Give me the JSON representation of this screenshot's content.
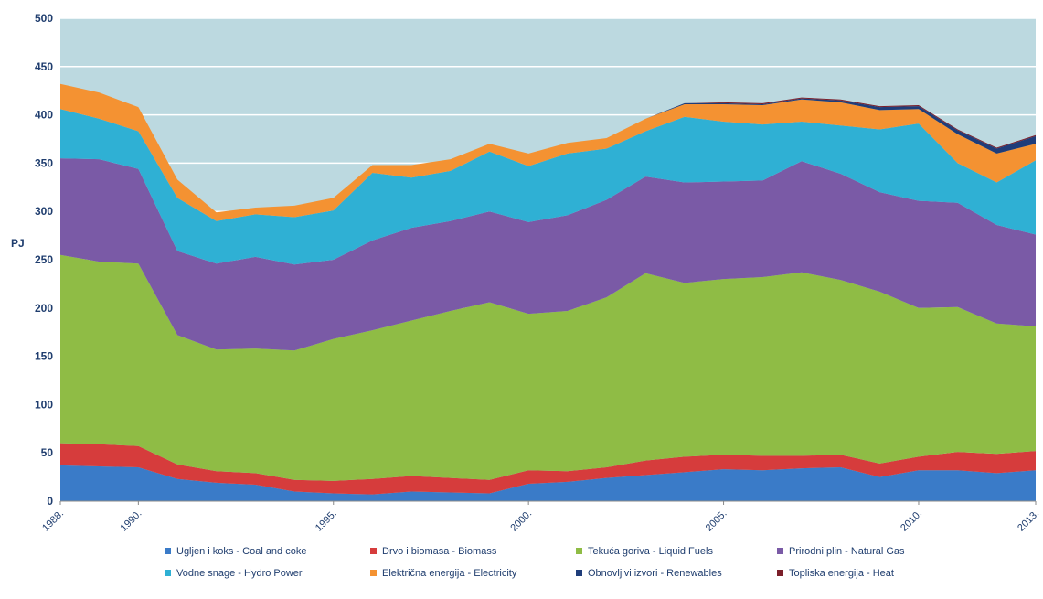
{
  "chart_data": {
    "type": "stacked_area",
    "ylabel": "PJ",
    "x": [
      1988,
      1989,
      1990,
      1991,
      1992,
      1993,
      1994,
      1995,
      1996,
      1997,
      1998,
      1999,
      2000,
      2001,
      2002,
      2003,
      2004,
      2005,
      2006,
      2007,
      2008,
      2009,
      2010,
      2011,
      2012,
      2013
    ],
    "xlim": [
      1988,
      2013
    ],
    "xticks": [
      {
        "value": 1988,
        "label": "1988."
      },
      {
        "value": 1990,
        "label": "1990."
      },
      {
        "value": 1995,
        "label": "1995."
      },
      {
        "value": 2000,
        "label": "2000."
      },
      {
        "value": 2005,
        "label": "2005."
      },
      {
        "value": 2010,
        "label": "2010."
      },
      {
        "value": 2013,
        "label": "2013."
      }
    ],
    "ylim": [
      0,
      500
    ],
    "yticks": [
      0,
      50,
      100,
      150,
      200,
      250,
      300,
      350,
      400,
      450,
      500
    ],
    "grid": true,
    "series": [
      {
        "name": "Ugljen i koks - Coal and coke",
        "color": "#3a7bc8",
        "values": [
          37,
          36,
          35,
          23,
          19,
          17,
          10,
          8,
          7,
          10,
          9,
          8,
          18,
          20,
          24,
          27,
          30,
          33,
          32,
          34,
          35,
          25,
          32,
          32,
          29,
          32
        ]
      },
      {
        "name": "Drvo i biomasa - Biomass",
        "color": "#d63c3c",
        "values": [
          23,
          23,
          22,
          15,
          12,
          12,
          12,
          13,
          16,
          16,
          15,
          14,
          14,
          11,
          11,
          15,
          16,
          15,
          15,
          13,
          13,
          14,
          14,
          19,
          20,
          20
        ]
      },
      {
        "name": "Tekuća goriva - Liquid Fuels",
        "color": "#8fbc45",
        "values": [
          195,
          189,
          189,
          134,
          126,
          129,
          134,
          147,
          154,
          161,
          173,
          184,
          162,
          166,
          176,
          194,
          180,
          182,
          185,
          190,
          181,
          178,
          154,
          150,
          135,
          129
        ]
      },
      {
        "name": "Prirodni plin - Natural Gas",
        "color": "#7a5aa6",
        "values": [
          100,
          106,
          98,
          87,
          89,
          95,
          89,
          82,
          93,
          96,
          93,
          94,
          95,
          99,
          101,
          100,
          104,
          101,
          100,
          115,
          110,
          103,
          111,
          108,
          102,
          95
        ]
      },
      {
        "name": "Vodne snage - Hydro Power",
        "color": "#2fb0d4",
        "values": [
          51,
          42,
          39,
          55,
          44,
          44,
          49,
          51,
          70,
          52,
          52,
          62,
          58,
          64,
          53,
          47,
          68,
          62,
          58,
          41,
          50,
          65,
          80,
          41,
          44,
          77
        ]
      },
      {
        "name": "Električna energija - Electricity",
        "color": "#f49232",
        "values": [
          26,
          27,
          25,
          19,
          9,
          7,
          12,
          13,
          8,
          13,
          12,
          8,
          13,
          11,
          11,
          13,
          13,
          18,
          20,
          23,
          24,
          20,
          15,
          30,
          30,
          17
        ]
      },
      {
        "name": "Obnovljivi izvori - Renewables",
        "color": "#1f3d7a",
        "values": [
          0,
          0,
          0,
          0,
          0,
          0,
          0,
          0,
          0,
          0,
          0,
          0,
          0,
          0,
          0,
          0,
          1,
          1,
          1,
          1,
          2,
          3,
          3,
          4,
          5,
          8
        ]
      },
      {
        "name": "Topliska energija - Heat",
        "color": "#7b1f2a",
        "values": [
          0,
          0,
          0,
          0,
          0,
          0,
          0,
          0,
          0,
          0,
          0,
          0,
          0,
          0,
          0,
          0,
          0,
          1,
          1,
          1,
          1,
          1,
          1,
          1,
          1,
          1
        ]
      }
    ]
  }
}
